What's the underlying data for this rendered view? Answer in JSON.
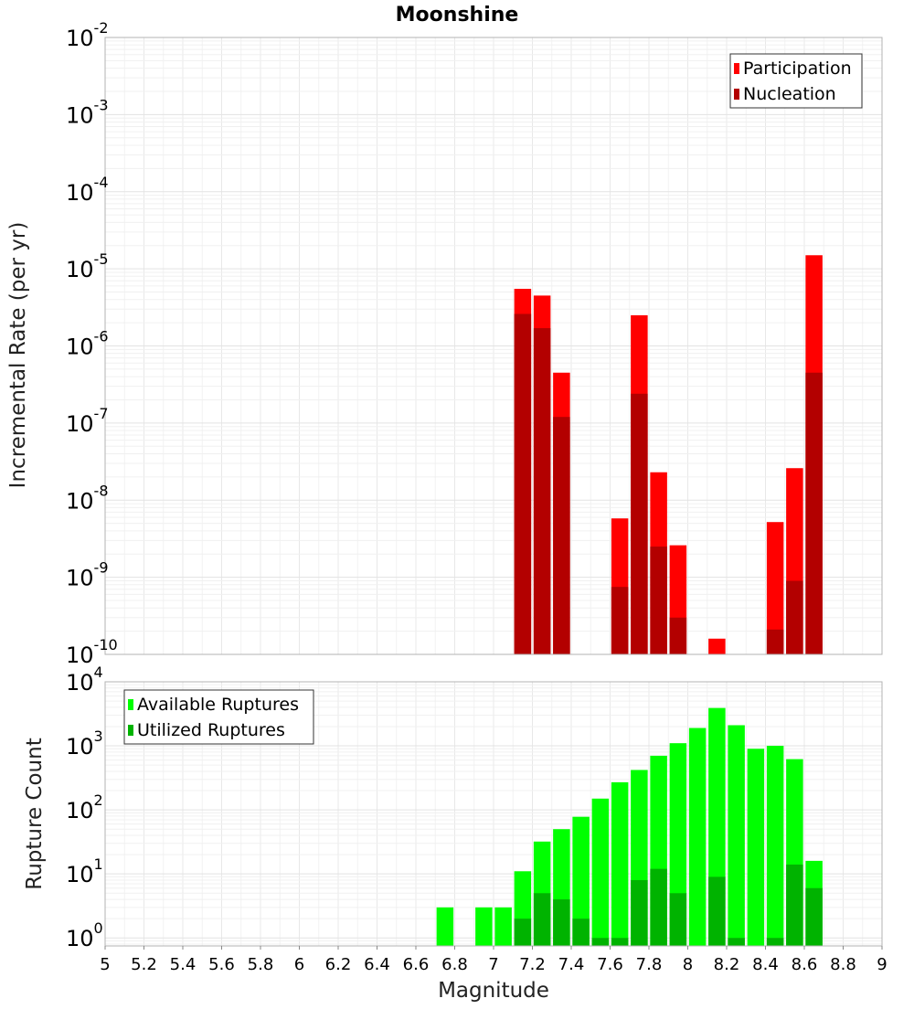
{
  "chart_data": [
    {
      "type": "bar",
      "title": "Moonshine",
      "xlabel": "",
      "ylabel": "Incremental Rate (per yr)",
      "y_scale": "log",
      "ylim": [
        1e-10,
        0.01
      ],
      "xlim": [
        5,
        9
      ],
      "ytick_exponents": [
        "-10",
        "-9",
        "-8",
        "-7",
        "-6",
        "-5",
        "-4",
        "-3",
        "-2"
      ],
      "grid": true,
      "legend_position": "top-right",
      "x": [
        7.15,
        7.25,
        7.35,
        7.65,
        7.75,
        7.85,
        7.95,
        8.15,
        8.45,
        8.55,
        8.65
      ],
      "series": [
        {
          "name": "Participation",
          "color": "#ff0000",
          "values": [
            5.5e-06,
            4.5e-06,
            4.5e-07,
            5.8e-09,
            2.5e-06,
            2.3e-08,
            2.6e-09,
            1.6e-10,
            5.2e-09,
            2.6e-08,
            1.5e-05
          ]
        },
        {
          "name": "Nucleation",
          "color": "#b30000",
          "values": [
            2.6e-06,
            1.7e-06,
            1.2e-07,
            7.5e-10,
            2.4e-07,
            2.5e-09,
            3e-10,
            null,
            2.1e-10,
            9e-10,
            4.5e-07
          ]
        }
      ]
    },
    {
      "type": "bar",
      "title": "",
      "xlabel": "Magnitude",
      "ylabel": "Rupture Count",
      "y_scale": "log",
      "ylim": [
        0.75,
        10000
      ],
      "xlim": [
        5,
        9
      ],
      "ytick_exponents": [
        "0",
        "1",
        "2",
        "3",
        "4"
      ],
      "xticks": [
        "5",
        "5.2",
        "5.4",
        "5.6",
        "5.8",
        "6",
        "6.2",
        "6.4",
        "6.6",
        "6.8",
        "7",
        "7.2",
        "7.4",
        "7.6",
        "7.8",
        "8",
        "8.2",
        "8.4",
        "8.6",
        "8.8",
        "9"
      ],
      "grid": true,
      "legend_position": "top-left",
      "x": [
        6.75,
        6.95,
        7.05,
        7.15,
        7.25,
        7.35,
        7.45,
        7.55,
        7.65,
        7.75,
        7.85,
        7.95,
        8.05,
        8.15,
        8.25,
        8.35,
        8.45,
        8.55,
        8.65
      ],
      "series": [
        {
          "name": "Available Ruptures",
          "color": "#00ff00",
          "values": [
            3,
            3,
            3,
            11,
            32,
            50,
            78,
            150,
            270,
            420,
            700,
            1100,
            1900,
            3900,
            2100,
            900,
            1000,
            620,
            16
          ]
        },
        {
          "name": "Utilized Ruptures",
          "color": "#00b300",
          "values": [
            null,
            null,
            null,
            2,
            5,
            4,
            2,
            1,
            1,
            8,
            12,
            5,
            null,
            9,
            1,
            null,
            1,
            14,
            6
          ]
        }
      ]
    }
  ]
}
